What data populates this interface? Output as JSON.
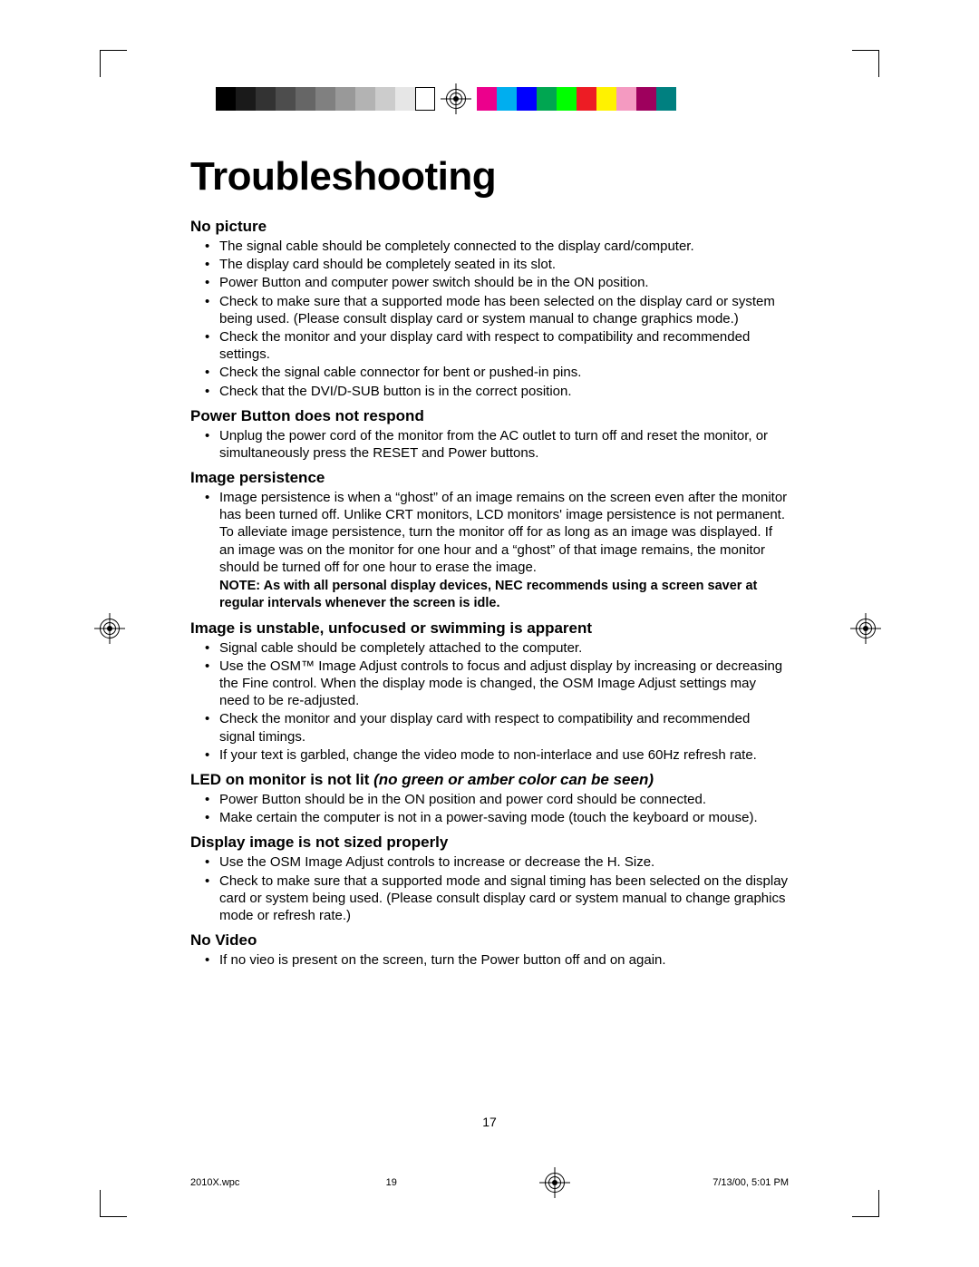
{
  "colorbar": {
    "grays": [
      "#000000",
      "#1a1a1a",
      "#333333",
      "#4d4d4d",
      "#666666",
      "#808080",
      "#999999",
      "#b3b3b3",
      "#cccccc",
      "#e6e6e6",
      "#ffffff"
    ],
    "colors": [
      "#ec008c",
      "#00aeef",
      "#0000ff",
      "#00a651",
      "#00ff00",
      "#ed1c24",
      "#fff200",
      "#f49ac1",
      "#9e005d",
      "#008080"
    ]
  },
  "title": "Troubleshooting",
  "sections": [
    {
      "heading": "No picture",
      "items": [
        "The signal cable should be completely connected to the display card/computer.",
        "The display card should be completely seated in its slot.",
        "Power Button and computer power switch should be in the ON position.",
        "Check to make sure that a supported mode has been selected on the display card or system being used. (Please consult display card or system manual to change graphics mode.)",
        "Check the monitor and your display card with respect to compatibility and recommended settings.",
        "Check the signal cable connector for bent or pushed-in pins.",
        "Check that the DVI/D-SUB button is in the correct position."
      ]
    },
    {
      "heading": "Power Button does not respond",
      "items": [
        "Unplug the power cord of the monitor from the AC outlet to turn off and reset the monitor, or simultaneously press the RESET and Power buttons."
      ]
    },
    {
      "heading": "Image persistence",
      "items": [
        "Image persistence is when a “ghost” of an image remains on the screen even after the monitor has been turned off. Unlike CRT monitors, LCD monitors' image persistence is not permanent. To alleviate image persistence, turn the monitor off for as long as an image was displayed. If an image was on the monitor for one hour and a “ghost” of that image remains, the monitor should be turned off for one hour to erase the image."
      ],
      "note": "NOTE: As with all personal display devices, NEC recommends using a screen saver at regular intervals whenever the screen is idle."
    },
    {
      "heading": "Image is unstable, unfocused or swimming is apparent",
      "items": [
        "Signal cable should be completely attached to the computer.",
        "Use the OSM™ Image Adjust controls to focus and adjust display by increasing or decreasing the Fine control. When the display mode is changed, the OSM Image Adjust settings may need to be re-adjusted.",
        "Check the monitor and your display card with respect to compatibility and recommended signal timings.",
        "If your text is garbled, change the video mode to non-interlace and use 60Hz refresh rate."
      ]
    },
    {
      "heading": "LED on monitor is not lit ",
      "heading_ital": "(no green or amber color can be seen)",
      "items": [
        "Power Button should be in the ON position and power cord should be connected.",
        "Make certain the computer is not in a power-saving mode (touch the keyboard or mouse)."
      ]
    },
    {
      "heading": "Display image is not sized properly",
      "items": [
        "Use the OSM Image Adjust controls to increase or decrease the H. Size.",
        "Check to make sure that a supported mode and signal timing has been selected on the display card or system being used. (Please consult display card or system manual to change graphics mode or refresh rate.)"
      ]
    },
    {
      "heading": "No Video",
      "items": [
        "If no vieo is present on the screen, turn the Power button off and on again."
      ]
    }
  ],
  "page_number": "17",
  "footer": {
    "file": "2010X.wpc",
    "sheet": "19",
    "timestamp": "7/13/00, 5:01 PM"
  }
}
